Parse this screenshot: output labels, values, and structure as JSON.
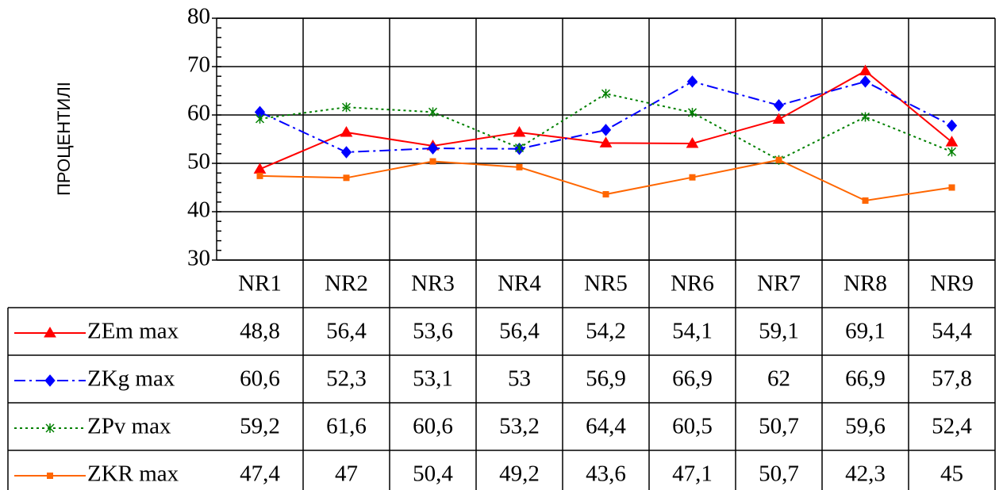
{
  "chart_data": {
    "type": "line",
    "y_label": "ПРОЦЕНТИЛІ",
    "categories": [
      "NR1",
      "NR2",
      "NR3",
      "NR4",
      "NR5",
      "NR6",
      "NR7",
      "NR8",
      "NR9"
    ],
    "ylim": [
      30,
      80
    ],
    "yticks": [
      30,
      40,
      50,
      60,
      70,
      80
    ],
    "grid": true,
    "series": [
      {
        "name": "ZEm max",
        "color": "#ff0000",
        "dash": "solid",
        "marker": "triangle",
        "values": [
          48.8,
          56.4,
          53.6,
          56.4,
          54.2,
          54.1,
          59.1,
          69.1,
          54.4
        ],
        "value_labels": [
          "48,8",
          "56,4",
          "53,6",
          "56,4",
          "54,2",
          "54,1",
          "59,1",
          "69,1",
          "54,4"
        ]
      },
      {
        "name": "ZKg max",
        "color": "#0000ff",
        "dash": "dashdot",
        "marker": "diamond",
        "values": [
          60.6,
          52.3,
          53.1,
          53,
          56.9,
          66.9,
          62,
          66.9,
          57.8
        ],
        "value_labels": [
          "60,6",
          "52,3",
          "53,1",
          "53",
          "56,9",
          "66,9",
          "62",
          "66,9",
          "57,8"
        ]
      },
      {
        "name": "ZPv max",
        "color": "#008000",
        "dash": "dotted",
        "marker": "asterisk",
        "values": [
          59.2,
          61.6,
          60.6,
          53.2,
          64.4,
          60.5,
          50.7,
          59.6,
          52.4
        ],
        "value_labels": [
          "59,2",
          "61,6",
          "60,6",
          "53,2",
          "64,4",
          "60,5",
          "50,7",
          "59,6",
          "52,4"
        ]
      },
      {
        "name": "ZKR max",
        "color": "#ff6600",
        "dash": "solid",
        "marker": "square",
        "values": [
          47.4,
          47,
          50.4,
          49.2,
          43.6,
          47.1,
          50.7,
          42.3,
          45
        ],
        "value_labels": [
          "47,4",
          "47",
          "50,4",
          "49,2",
          "43,6",
          "47,1",
          "50,7",
          "42,3",
          "45"
        ]
      }
    ]
  }
}
